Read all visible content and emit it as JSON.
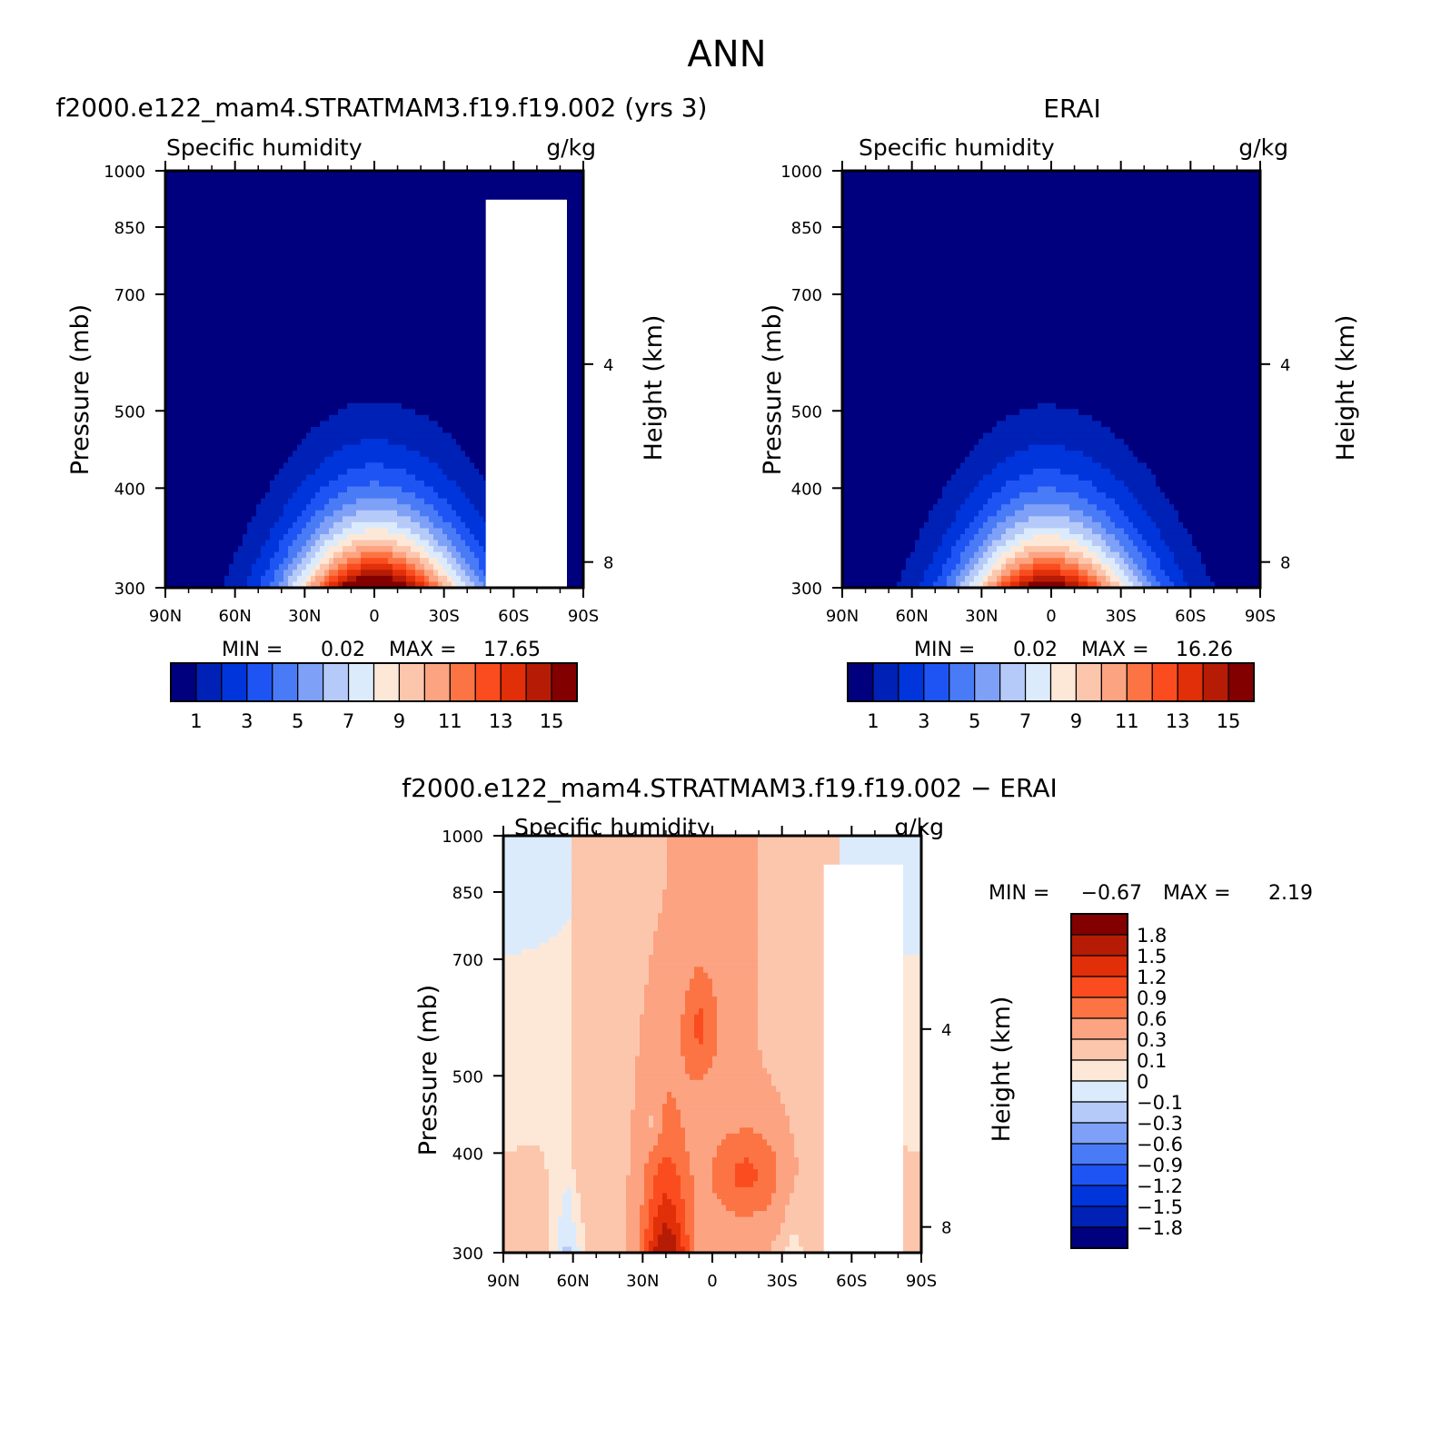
{
  "figure_title": "ANN",
  "chart_data": [
    {
      "type": "heatmap",
      "panel": "model",
      "title": "f2000.e122_mam4.STRATMAM3.f19.f19.002 (yrs 3)",
      "variable_label": "Specific humidity",
      "units_label": "g/kg",
      "xlabel": "",
      "ylabel": "Pressure (mb)",
      "right_ylabel": "Height (km)",
      "x_ticks": [
        "90N",
        "60N",
        "30N",
        "0",
        "30S",
        "60S",
        "90S"
      ],
      "x_tick_values": [
        90,
        60,
        30,
        0,
        -30,
        -60,
        -90
      ],
      "y_ticks": [
        "300",
        "400",
        "500",
        "700",
        "850",
        "1000"
      ],
      "y_tick_values": [
        300,
        400,
        500,
        700,
        850,
        1000
      ],
      "right_ticks": [
        "8",
        "4"
      ],
      "right_tick_values": [
        8,
        4
      ],
      "ylim": [
        1000,
        300
      ],
      "stats": {
        "min_label": "MIN =",
        "min": "0.02",
        "max_label": "MAX =",
        "max": "17.65"
      },
      "peak": 17.65,
      "peak_lat": 0,
      "colorbar_labels": [
        "1",
        "3",
        "5",
        "7",
        "9",
        "11",
        "13",
        "15"
      ]
    },
    {
      "type": "heatmap",
      "panel": "obs",
      "title": "ERAI",
      "variable_label": "Specific humidity",
      "units_label": "g/kg",
      "xlabel": "",
      "ylabel": "Pressure (mb)",
      "right_ylabel": "Height (km)",
      "x_ticks": [
        "90N",
        "60N",
        "30N",
        "0",
        "30S",
        "60S",
        "90S"
      ],
      "x_tick_values": [
        90,
        60,
        30,
        0,
        -30,
        -60,
        -90
      ],
      "y_ticks": [
        "300",
        "400",
        "500",
        "700",
        "850",
        "1000"
      ],
      "y_tick_values": [
        300,
        400,
        500,
        700,
        850,
        1000
      ],
      "right_ticks": [
        "8",
        "4"
      ],
      "right_tick_values": [
        8,
        4
      ],
      "ylim": [
        1000,
        300
      ],
      "stats": {
        "min_label": "MIN =",
        "min": "0.02",
        "max_label": "MAX =",
        "max": "16.26"
      },
      "peak": 16.26,
      "peak_lat": 2,
      "colorbar_labels": [
        "1",
        "3",
        "5",
        "7",
        "9",
        "11",
        "13",
        "15"
      ]
    },
    {
      "type": "heatmap",
      "panel": "diff",
      "title": "f2000.e122_mam4.STRATMAM3.f19.f19.002 - ERAI",
      "variable_label": "Specific humidity",
      "units_label": "g/kg",
      "xlabel": "",
      "ylabel": "Pressure (mb)",
      "right_ylabel": "Height (km)",
      "x_ticks": [
        "90N",
        "60N",
        "30N",
        "0",
        "30S",
        "60S",
        "90S"
      ],
      "x_tick_values": [
        90,
        60,
        30,
        0,
        -30,
        -60,
        -90
      ],
      "y_ticks": [
        "300",
        "400",
        "500",
        "700",
        "850",
        "1000"
      ],
      "y_tick_values": [
        300,
        400,
        500,
        700,
        850,
        1000
      ],
      "right_ticks": [
        "8",
        "4"
      ],
      "right_tick_values": [
        8,
        4
      ],
      "ylim": [
        1000,
        300
      ],
      "stats": {
        "min_label": "MIN =",
        "min": "-0.67",
        "max_label": "MAX =",
        "max": "2.19"
      },
      "colorbar_labels": [
        "1.8",
        "1.5",
        "1.2",
        "0.9",
        "0.6",
        "0.3",
        "0.1",
        "0",
        "-0.1",
        "-0.3",
        "-0.6",
        "-0.9",
        "-1.2",
        "-1.5",
        "-1.8"
      ]
    }
  ],
  "colors": {
    "seq": [
      "#00007e",
      "#0021b5",
      "#0035dc",
      "#1f54f4",
      "#4a7bf6",
      "#7ea0f7",
      "#b6caf9",
      "#dcebfc",
      "#fde8d8",
      "#fcc6ac",
      "#fca382",
      "#fc7444",
      "#fb4c1f",
      "#e02f09",
      "#b61c05",
      "#830000"
    ],
    "diff": [
      "#830000",
      "#b61c05",
      "#e02f09",
      "#fb4c1f",
      "#fc7444",
      "#fca382",
      "#fcc6ac",
      "#fde8d8",
      "#dcebfc",
      "#b6caf9",
      "#7ea0f7",
      "#4a7bf6",
      "#1f54f4",
      "#0035dc",
      "#0021b5",
      "#00007e"
    ],
    "axis": "#000000",
    "missing": "#ffffff"
  }
}
